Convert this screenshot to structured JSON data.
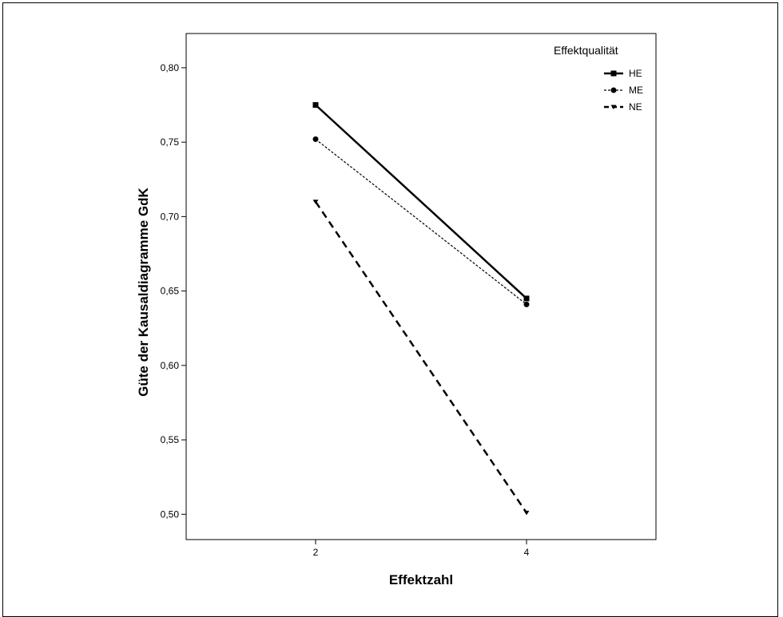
{
  "chart_data": {
    "type": "line",
    "title": "",
    "xlabel": "Effektzahl",
    "ylabel": "Güte der Kausaldiagramme GdK",
    "x": [
      2,
      4
    ],
    "x_tick_labels": [
      "2",
      "4"
    ],
    "y_tick_labels": [
      "0,80",
      "0,75",
      "0,70",
      "0,65",
      "0,60",
      "0,55",
      "0,50"
    ],
    "ylim": [
      0.483,
      0.823
    ],
    "y_ticks": [
      0.8,
      0.75,
      0.7,
      0.65,
      0.6,
      0.55,
      0.5
    ],
    "grid": false,
    "legend": {
      "title": "Effektqualität",
      "placement": "top-right"
    },
    "series": [
      {
        "name": "HE",
        "values": [
          0.775,
          0.645
        ],
        "line_style": "solid",
        "marker": "square",
        "color": "#000000"
      },
      {
        "name": "ME",
        "values": [
          0.752,
          0.641
        ],
        "line_style": "dotted",
        "marker": "circle",
        "color": "#000000"
      },
      {
        "name": "NE",
        "values": [
          0.71,
          0.501
        ],
        "line_style": "dashed",
        "marker": "triangle-down",
        "color": "#000000"
      }
    ]
  }
}
